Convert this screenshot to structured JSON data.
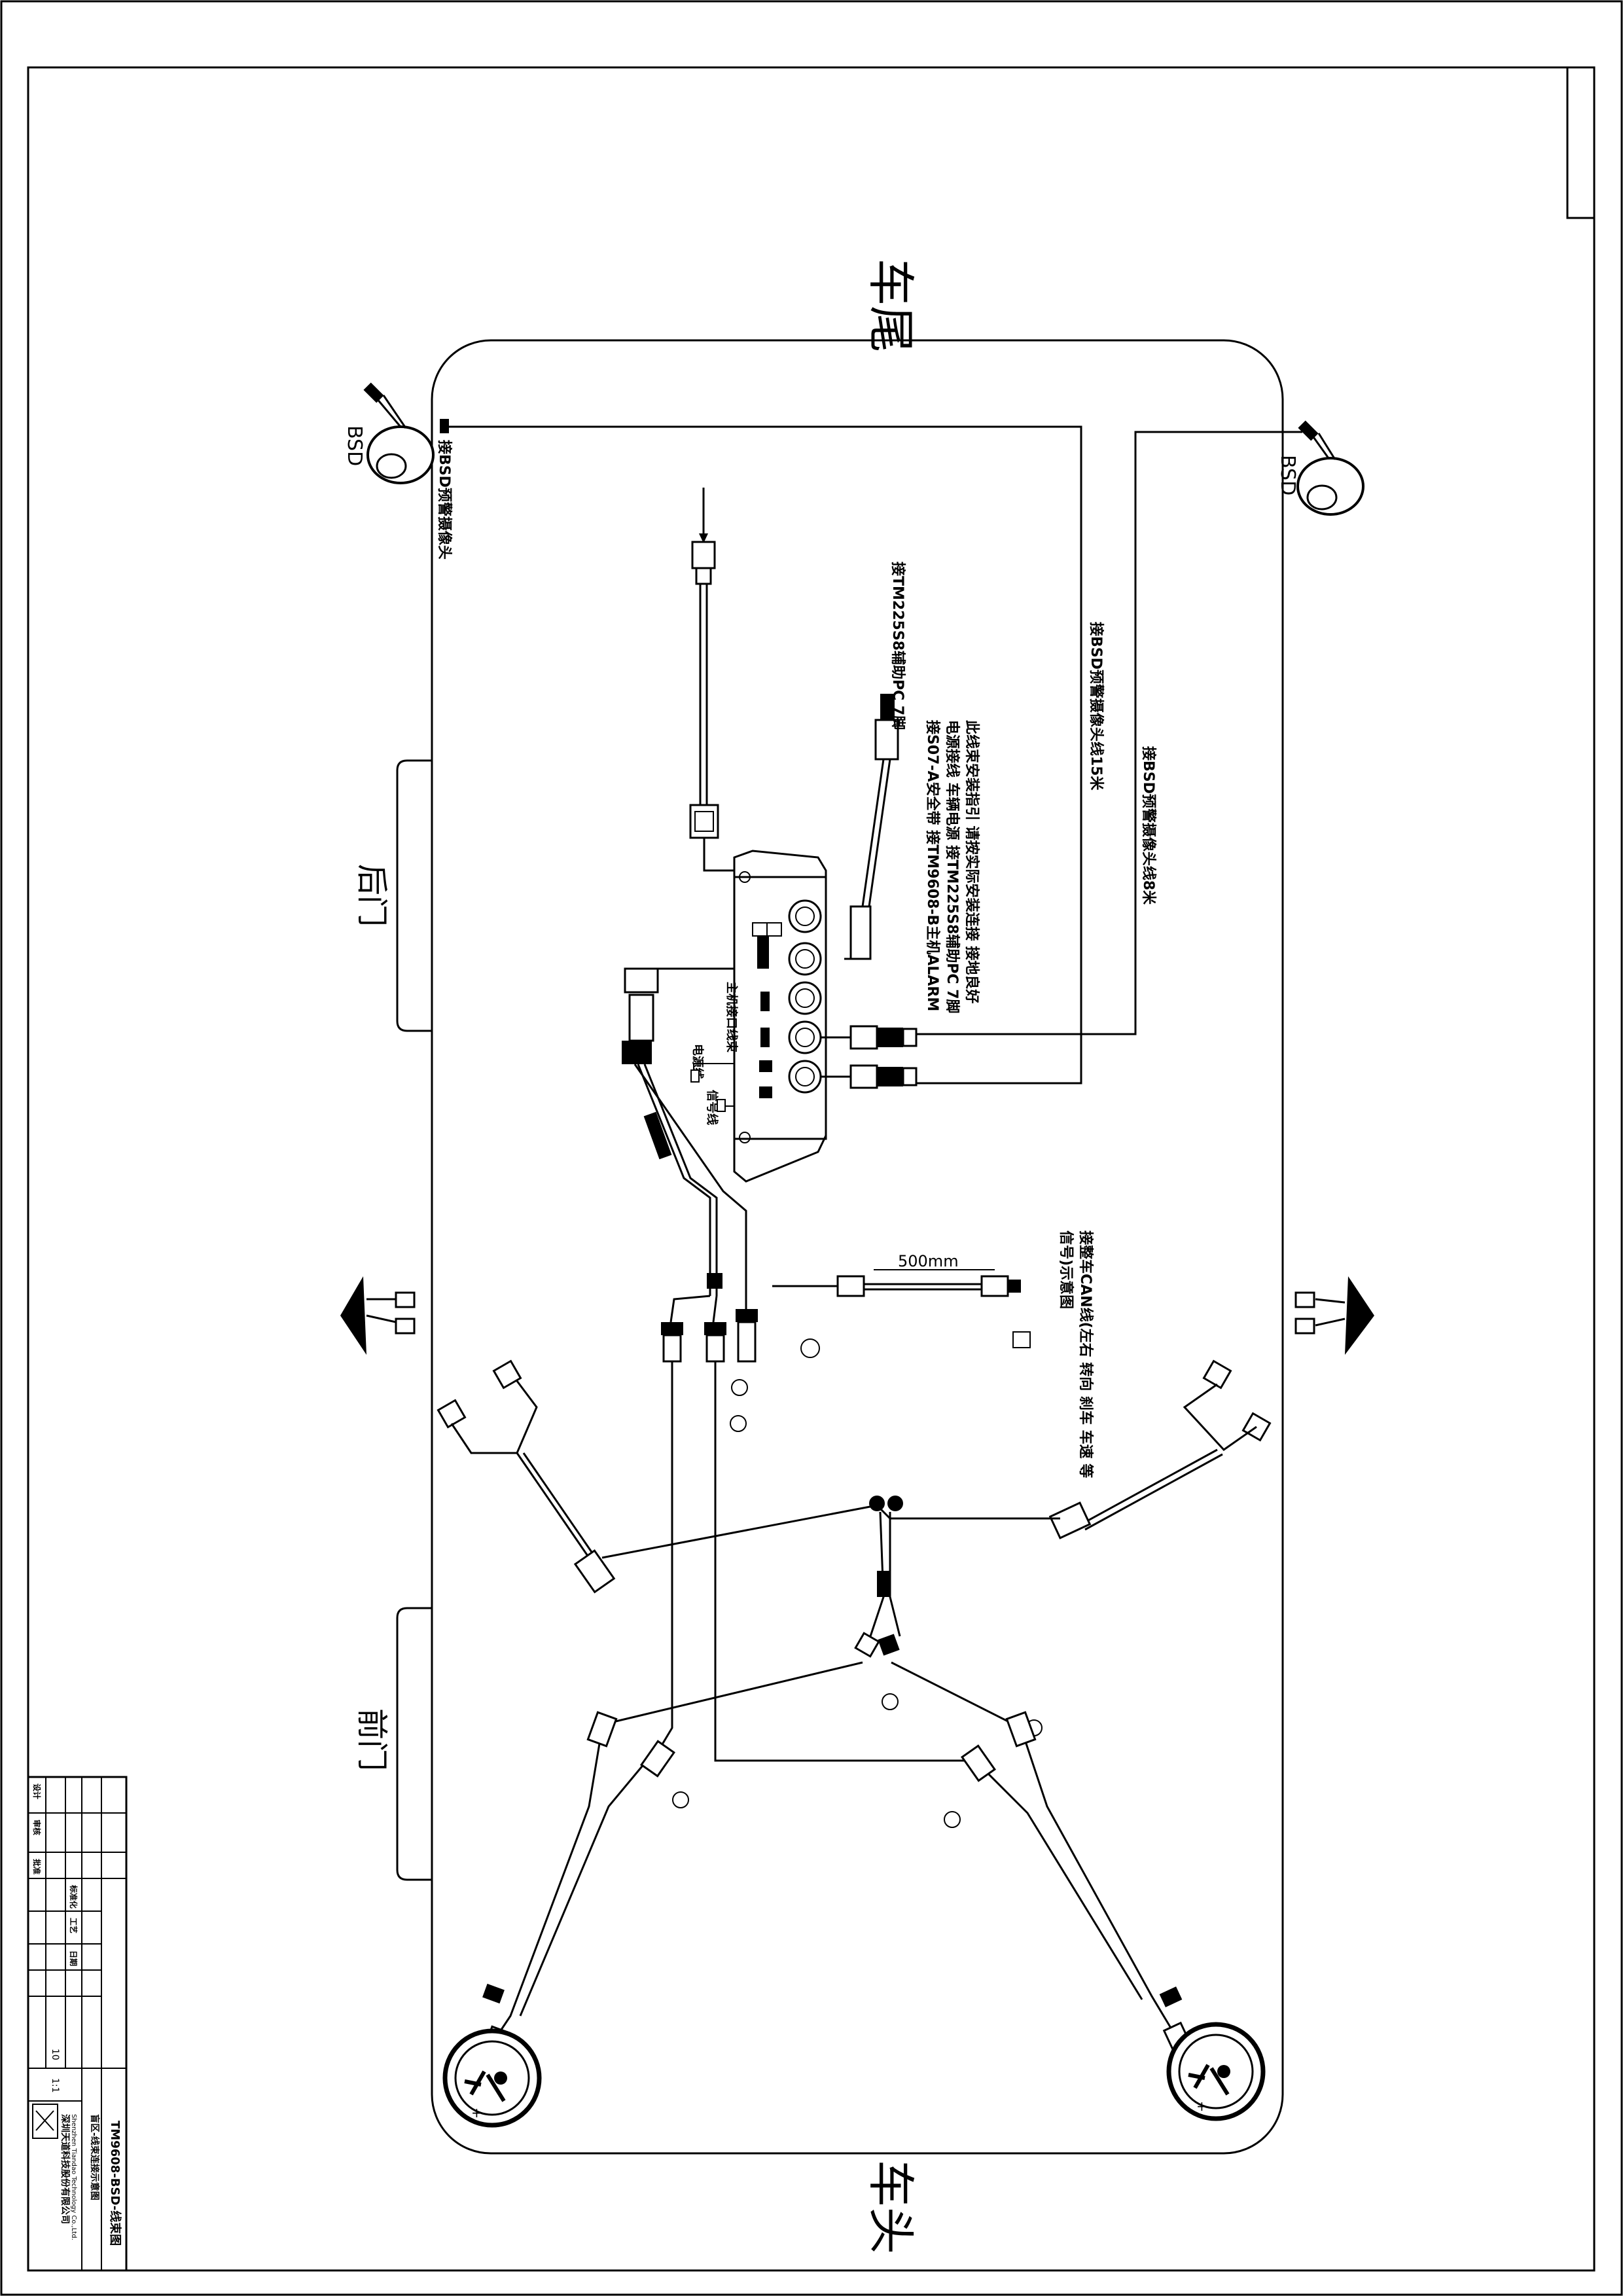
{
  "drawing": {
    "vehicle_labels": {
      "rear": "车尾",
      "front": "车头",
      "back_door": "后门",
      "front_door": "前门"
    },
    "sensor_labels": {
      "bsd_left": "BSD",
      "bsd_right": "BSD"
    },
    "notes": {
      "bsd_left_cable": "接BSD预警摄像头",
      "bsd_cable_15m": "接BSD预警摄像头线15米",
      "bsd_cable_8m": "接BSD预警摄像头线8米",
      "tm_cable": "接TM225S8辅助PC 7脚",
      "install_note_1": "此线束安装指引 请按实际安装连接 接地良好",
      "install_note_2": "电源接线 车辆电源 接TM225S8辅助PC 7脚",
      "install_note_3": "接S07-A安全带 接TM9608-B主机ALARM",
      "cable_length": "500mm",
      "can_note_1": "接整车CAN线(左右 转向 刹车 车速 等",
      "can_note_2": "信号)示意图",
      "controller_label": "主机接口线束",
      "pin_label_1": "电源线",
      "pin_label_2": "信号线"
    }
  },
  "title_block": {
    "part_number": "TM9608-BSD-线束图",
    "company": "深圳天道科技股份有限公司",
    "company_en": "Shenzhen Tiandao Technology Co.,Ltd.",
    "drawing_name": "盲区-线束连接示意图",
    "scale": "1:1",
    "sheets": "10",
    "heads": [
      "设计",
      "审核",
      "批准",
      "标准化",
      "工艺",
      "日期"
    ]
  },
  "colors": {
    "ink": "#000000",
    "paper": "#ffffff"
  }
}
